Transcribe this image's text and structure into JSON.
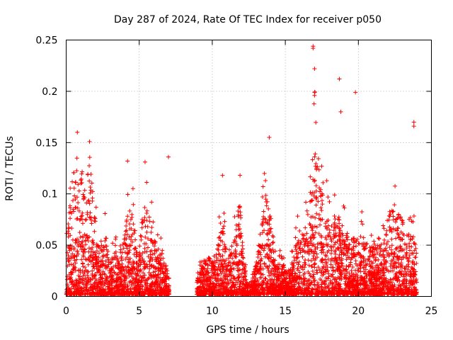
{
  "chart_data": {
    "type": "scatter",
    "title": "Day 287 of 2024, Rate Of TEC Index for receiver p050",
    "xlabel": "GPS time / hours",
    "ylabel": "ROTI / TECUs",
    "xlim": [
      0,
      25
    ],
    "ylim": [
      0,
      0.25
    ],
    "xticks": [
      0,
      5,
      10,
      15,
      20,
      25
    ],
    "xtick_labels": [
      "0",
      "5",
      "10",
      "15",
      "20",
      "25"
    ],
    "yticks": [
      0,
      0.05,
      0.1,
      0.15,
      0.2,
      0.25
    ],
    "ytick_labels": [
      "0",
      "0.05",
      "0.1",
      "0.15",
      "0.2",
      "0.25"
    ],
    "grid": true,
    "marker": "+",
    "marker_color": "#ff0000",
    "data_gap_hours": [
      7.05,
      8.95
    ],
    "series": [
      {
        "name": "ROTI",
        "notable_points": [
          {
            "x": 1.6,
            "y": 0.151
          },
          {
            "x": 4.2,
            "y": 0.132
          },
          {
            "x": 5.4,
            "y": 0.131
          },
          {
            "x": 7.0,
            "y": 0.136
          },
          {
            "x": 10.7,
            "y": 0.118
          },
          {
            "x": 11.9,
            "y": 0.118
          },
          {
            "x": 13.9,
            "y": 0.155
          },
          {
            "x": 16.9,
            "y": 0.244
          },
          {
            "x": 16.9,
            "y": 0.242
          },
          {
            "x": 17.0,
            "y": 0.222
          },
          {
            "x": 17.0,
            "y": 0.199
          },
          {
            "x": 17.0,
            "y": 0.196
          },
          {
            "x": 18.7,
            "y": 0.212
          },
          {
            "x": 18.8,
            "y": 0.18
          },
          {
            "x": 19.8,
            "y": 0.199
          },
          {
            "x": 23.8,
            "y": 0.17
          },
          {
            "x": 23.8,
            "y": 0.166
          }
        ]
      }
    ]
  }
}
